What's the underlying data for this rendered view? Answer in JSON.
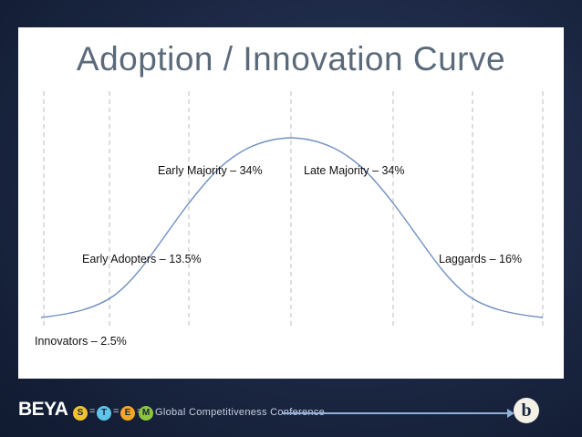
{
  "title": "Adoption / Innovation Curve",
  "segments": [
    {
      "name": "Innovators",
      "label": "Innovators – 2.5%"
    },
    {
      "name": "Early Adopters",
      "label": "Early Adopters – 13.5%"
    },
    {
      "name": "Early Majority",
      "label": "Early Majority – 34%"
    },
    {
      "name": "Late Majority",
      "label": "Late Majority – 34%"
    },
    {
      "name": "Laggards",
      "label": "Laggards – 16%"
    }
  ],
  "footer": {
    "brand": "BEYA",
    "stem_letters": [
      "S",
      "T",
      "E",
      "M"
    ],
    "equals": "=",
    "conference": "Global Competitiveness Conference",
    "logo_letter": "b"
  },
  "colors": {
    "background": "#1a2540",
    "panel": "#ffffff",
    "title": "#5b6a7a",
    "curve": "#6f8fc2",
    "guides": "#c8c8c8",
    "stem_s": "#f2c230",
    "stem_t": "#5ec6e8",
    "stem_e": "#f5a623",
    "stem_m": "#8cc63f"
  }
}
